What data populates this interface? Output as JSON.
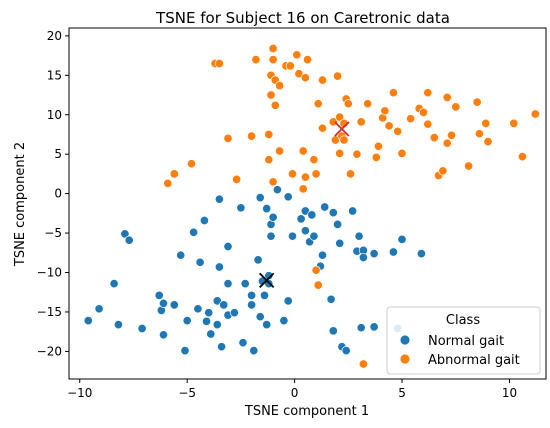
{
  "chart_data": {
    "type": "scatter",
    "title": "TSNE for Subject 16 on Caretronic data",
    "xlabel": "TSNE component 1",
    "ylabel": "TSNE component 2",
    "xlim": [
      -10.5,
      11.7
    ],
    "ylim": [
      -23.5,
      21
    ],
    "xticks": [
      -10,
      -5,
      0,
      5,
      10
    ],
    "yticks": [
      -20,
      -15,
      -10,
      -5,
      0,
      5,
      10,
      15,
      20
    ],
    "xtick_labels": [
      "−10",
      "−5",
      "0",
      "5",
      "10"
    ],
    "ytick_labels": [
      "−20",
      "−15",
      "−10",
      "−5",
      "0",
      "5",
      "10",
      "15",
      "20"
    ],
    "grid": false,
    "legend": {
      "title": "Class",
      "position": "lower-right"
    },
    "series": [
      {
        "name": "Normal gait",
        "color": "#1f77b4",
        "points": [
          [
            -9.6,
            -16.1
          ],
          [
            -9.1,
            -14.6
          ],
          [
            -8.4,
            -11.4
          ],
          [
            -8.2,
            -16.6
          ],
          [
            -7.9,
            -5.1
          ],
          [
            -7.7,
            -5.9
          ],
          [
            -7.1,
            -17.1
          ],
          [
            -6.3,
            -12.9
          ],
          [
            -6.2,
            -14.8
          ],
          [
            -6.1,
            -17.9
          ],
          [
            -6.1,
            -13.9
          ],
          [
            -5.6,
            -14.1
          ],
          [
            -5.3,
            -7.8
          ],
          [
            -5.1,
            -19.9
          ],
          [
            -5.0,
            -16.1
          ],
          [
            -4.7,
            -4.9
          ],
          [
            -4.5,
            -14.6
          ],
          [
            -4.4,
            -8.7
          ],
          [
            -4.2,
            -3.4
          ],
          [
            -4.1,
            -16.2
          ],
          [
            -4.0,
            -15.1
          ],
          [
            -3.9,
            -17.8
          ],
          [
            -3.6,
            -13.6
          ],
          [
            -3.6,
            -16.6
          ],
          [
            -3.5,
            -9.3
          ],
          [
            -3.5,
            -0.7
          ],
          [
            -3.4,
            -19.4
          ],
          [
            -3.3,
            -14.1
          ],
          [
            -3.1,
            -11.4
          ],
          [
            -3.1,
            -6.7
          ],
          [
            -3.1,
            -15.4
          ],
          [
            -2.8,
            -15.1
          ],
          [
            -2.5,
            -1.8
          ],
          [
            -2.4,
            -18.9
          ],
          [
            -2.3,
            -11.4
          ],
          [
            -2.0,
            -12.9
          ],
          [
            -2.0,
            -14.1
          ],
          [
            -1.9,
            -19.9
          ],
          [
            -1.7,
            -8.4
          ],
          [
            -1.6,
            -0.5
          ],
          [
            -1.6,
            -15.6
          ],
          [
            -1.5,
            -11.1
          ],
          [
            -1.4,
            -12.9
          ],
          [
            -1.3,
            -1.9
          ],
          [
            -1.3,
            -16.6
          ],
          [
            -1.2,
            -10.4
          ],
          [
            -1.2,
            -11.4
          ],
          [
            -1.1,
            -5.4
          ],
          [
            -1.1,
            -3.9
          ],
          [
            -1.0,
            -3.0
          ],
          [
            -0.8,
            0.5
          ],
          [
            -0.5,
            -16.1
          ],
          [
            -0.3,
            -0.4
          ],
          [
            -0.3,
            -13.6
          ],
          [
            -0.1,
            -5.4
          ],
          [
            0.3,
            -3.2
          ],
          [
            0.5,
            -2.2
          ],
          [
            0.5,
            -4.7
          ],
          [
            0.7,
            -6.1
          ],
          [
            0.8,
            -2.7
          ],
          [
            0.9,
            -5.4
          ],
          [
            1.2,
            -9.2
          ],
          [
            1.3,
            -7.8
          ],
          [
            1.4,
            -1.7
          ],
          [
            1.7,
            -13.4
          ],
          [
            1.8,
            -17.4
          ],
          [
            1.8,
            -2.4
          ],
          [
            2.0,
            -3.9
          ],
          [
            2.1,
            -6.3
          ],
          [
            2.2,
            -19.4
          ],
          [
            2.4,
            -19.9
          ],
          [
            2.7,
            -2.2
          ],
          [
            2.9,
            -7.3
          ],
          [
            3.0,
            -5.4
          ],
          [
            3.1,
            -17.0
          ],
          [
            3.2,
            -7.2
          ],
          [
            3.2,
            -8.1
          ],
          [
            3.7,
            -16.9
          ],
          [
            3.7,
            -7.6
          ],
          [
            4.6,
            -7.4
          ],
          [
            4.8,
            -17.1
          ],
          [
            5.0,
            -5.8
          ],
          [
            5.9,
            -7.6
          ]
        ]
      },
      {
        "name": "Abnormal gait",
        "color": "#ff7f0e",
        "points": [
          [
            -5.9,
            1.3
          ],
          [
            -5.6,
            2.5
          ],
          [
            -4.8,
            3.8
          ],
          [
            -3.7,
            16.5
          ],
          [
            -3.5,
            16.5
          ],
          [
            -3.1,
            7.0
          ],
          [
            -2.7,
            1.8
          ],
          [
            -2.0,
            7.3
          ],
          [
            -1.8,
            17.0
          ],
          [
            -1.2,
            7.5
          ],
          [
            -1.2,
            4.3
          ],
          [
            -1.1,
            12.5
          ],
          [
            -1.1,
            15.0
          ],
          [
            -1.0,
            17.0
          ],
          [
            -1.0,
            18.4
          ],
          [
            -1.0,
            1.5
          ],
          [
            -0.9,
            11.2
          ],
          [
            -0.9,
            14.4
          ],
          [
            -0.7,
            13.7
          ],
          [
            -0.7,
            5.4
          ],
          [
            -0.4,
            16.2
          ],
          [
            -0.2,
            16.2
          ],
          [
            -0.1,
            2.5
          ],
          [
            0.1,
            17.6
          ],
          [
            0.2,
            15.2
          ],
          [
            0.4,
            5.4
          ],
          [
            0.4,
            0.6
          ],
          [
            0.5,
            2.1
          ],
          [
            0.5,
            14.7
          ],
          [
            0.6,
            17.0
          ],
          [
            0.9,
            4.3
          ],
          [
            1.0,
            2.5
          ],
          [
            1.0,
            -9.7
          ],
          [
            1.1,
            -11.6
          ],
          [
            1.1,
            11.4
          ],
          [
            1.3,
            14.4
          ],
          [
            1.3,
            8.3
          ],
          [
            1.8,
            9.1
          ],
          [
            1.9,
            6.8
          ],
          [
            2.0,
            14.9
          ],
          [
            2.1,
            5.1
          ],
          [
            2.1,
            9.7
          ],
          [
            2.2,
            7.3
          ],
          [
            2.3,
            6.8
          ],
          [
            2.3,
            8.9
          ],
          [
            2.4,
            12.0
          ],
          [
            2.5,
            11.4
          ],
          [
            2.6,
            2.5
          ],
          [
            2.9,
            5.0
          ],
          [
            3.1,
            9.1
          ],
          [
            3.2,
            -21.6
          ],
          [
            3.4,
            11.4
          ],
          [
            3.8,
            4.6
          ],
          [
            3.9,
            6.0
          ],
          [
            4.1,
            9.6
          ],
          [
            4.2,
            10.5
          ],
          [
            4.4,
            8.6
          ],
          [
            4.6,
            12.8
          ],
          [
            4.8,
            7.9
          ],
          [
            5.0,
            5.1
          ],
          [
            5.4,
            9.5
          ],
          [
            5.8,
            10.8
          ],
          [
            6.0,
            10.3
          ],
          [
            6.2,
            8.8
          ],
          [
            6.2,
            12.8
          ],
          [
            6.5,
            7.1
          ],
          [
            6.7,
            2.3
          ],
          [
            6.9,
            2.9
          ],
          [
            7.1,
            12.2
          ],
          [
            7.1,
            6.4
          ],
          [
            7.3,
            7.4
          ],
          [
            7.5,
            11.0
          ],
          [
            8.1,
            3.5
          ],
          [
            8.5,
            11.6
          ],
          [
            8.6,
            7.6
          ],
          [
            8.9,
            8.9
          ],
          [
            9.0,
            6.6
          ],
          [
            10.2,
            8.9
          ],
          [
            10.6,
            4.7
          ],
          [
            11.2,
            10.1
          ]
        ]
      }
    ],
    "centroids": [
      {
        "series": "Normal gait",
        "x": -1.3,
        "y": -11.0,
        "color": "#000000",
        "marker": "x"
      },
      {
        "series": "Abnormal gait",
        "x": 2.2,
        "y": 8.2,
        "color": "#d62728",
        "marker": "x"
      }
    ]
  }
}
